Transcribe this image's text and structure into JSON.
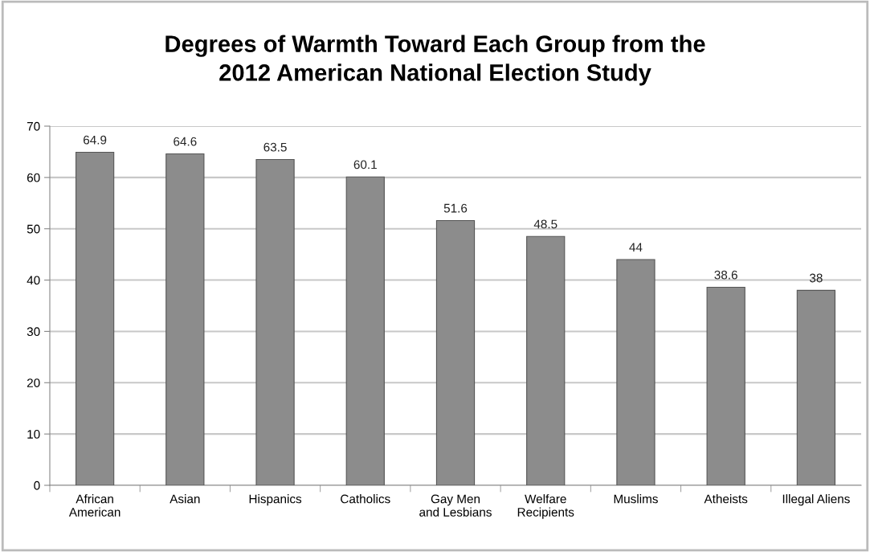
{
  "chart_data": {
    "type": "bar",
    "title": "Degrees of Warmth Toward Each Group from the\n2012 American National Election Study",
    "categories": [
      "African\nAmerican",
      "Asian",
      "Hispanics",
      "Catholics",
      "Gay Men\nand Lesbians",
      "Welfare\nRecipients",
      "Muslims",
      "Atheists",
      "Illegal Aliens"
    ],
    "values": [
      64.9,
      64.6,
      63.5,
      60.1,
      51.6,
      48.5,
      44,
      38.6,
      38
    ],
    "color": "#8c8c8c",
    "ylim": [
      0,
      70
    ],
    "yticks": [
      0,
      10,
      20,
      30,
      40,
      50,
      60,
      70
    ],
    "grid": "y",
    "data_labels": true
  }
}
